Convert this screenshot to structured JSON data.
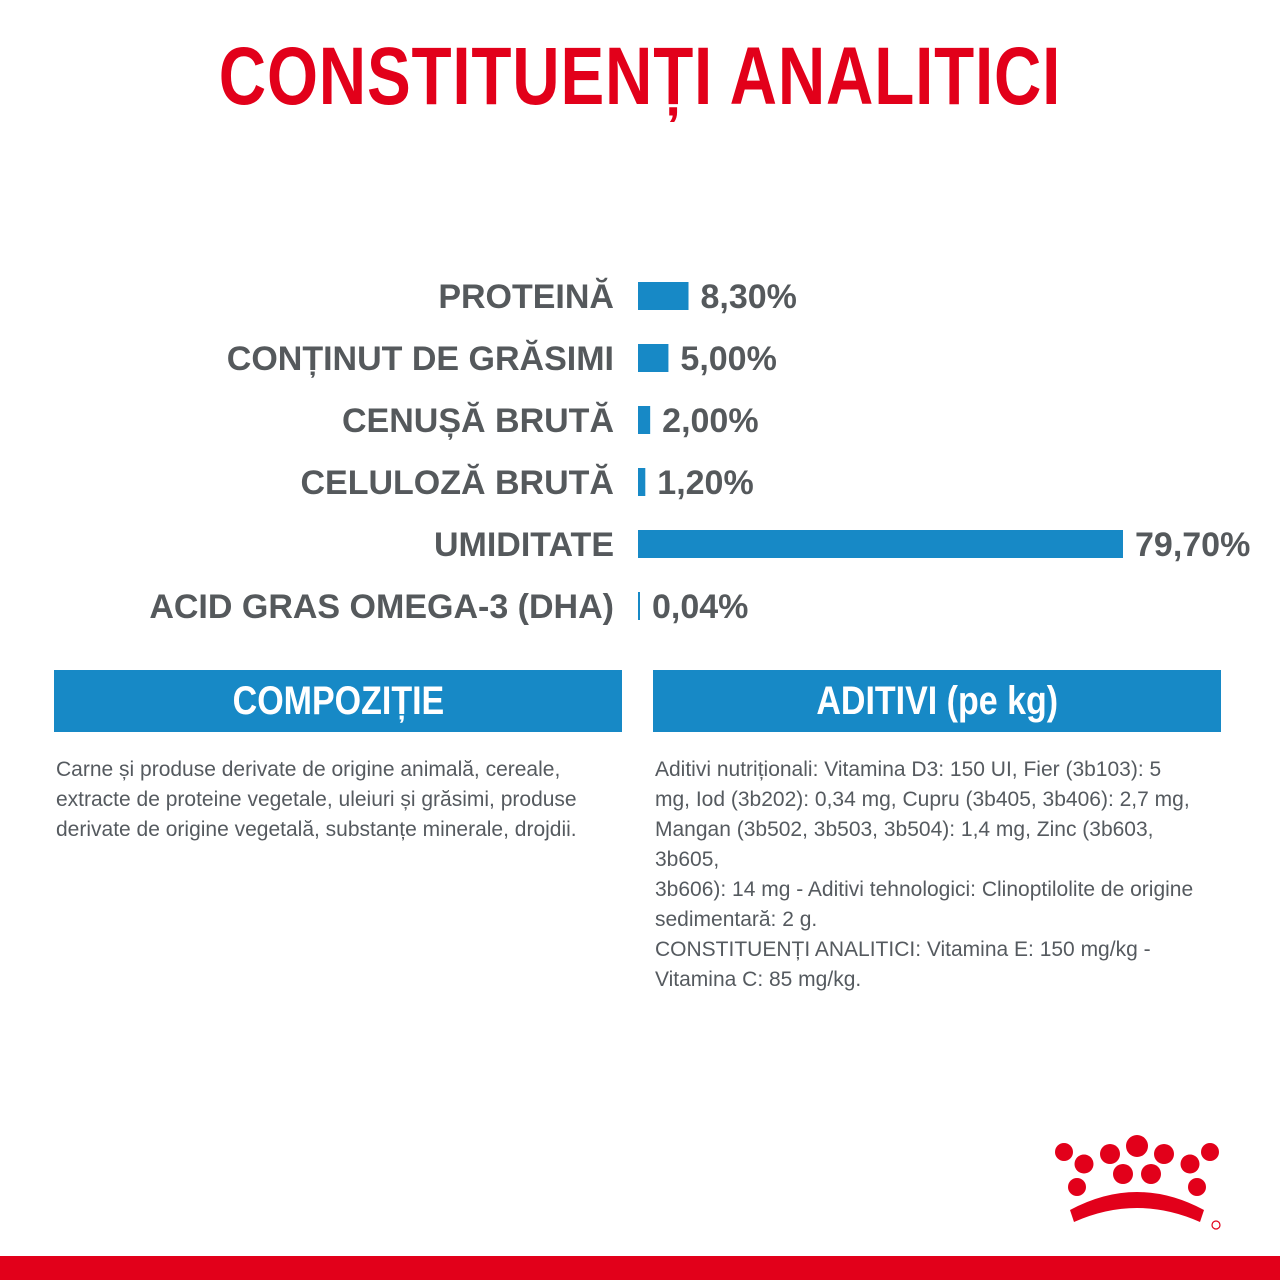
{
  "title": "CONSTITUENȚI ANALITICI",
  "chart_data": {
    "type": "bar",
    "orientation": "horizontal",
    "categories": [
      "PROTEINĂ",
      "CONȚINUT DE GRĂSIMI",
      "CENUȘĂ BRUTĂ",
      "CELULOZĂ BRUTĂ",
      "UMIDITATE",
      "ACID GRAS OMEGA-3 (DHA)"
    ],
    "values": [
      8.3,
      5.0,
      2.0,
      1.2,
      79.7,
      0.04
    ],
    "value_labels": [
      "8,30%",
      "5,00%",
      "2,00%",
      "1,20%",
      "79,70%",
      "0,04%"
    ],
    "xlim": [
      0,
      79.7
    ],
    "grid": false,
    "bar_color": "#1789c6",
    "label_color": "#55595c"
  },
  "composition": {
    "header": "COMPOZIȚIE",
    "lines": [
      "Carne și produse derivate de origine animală, cereale,",
      "extracte de proteine vegetale, uleiuri și grăsimi, produse",
      "derivate de origine vegetală, substanțe minerale, drojdii."
    ]
  },
  "additives": {
    "header": "ADITIVI (pe kg)",
    "lines": [
      "Aditivi nutriționali: Vitamina D3: 150 UI, Fier (3b103): 5",
      "mg, Iod (3b202): 0,34 mg, Cupru (3b405, 3b406): 2,7 mg,",
      "Mangan (3b502, 3b503, 3b504): 1,4 mg, Zinc (3b603, 3b605,",
      "3b606): 14 mg - Aditivi tehnologici: Clinoptilolite de origine",
      "sedimentară: 2 g.",
      "CONSTITUENȚI ANALITICI: Vitamina E: 150 mg/kg -",
      "Vitamina C: 85 mg/kg."
    ]
  },
  "colors": {
    "brand_red": "#e2001a",
    "accent_blue": "#1789c6",
    "text_gray": "#55595c"
  },
  "logo_icon": "royal-canin-crown-icon"
}
